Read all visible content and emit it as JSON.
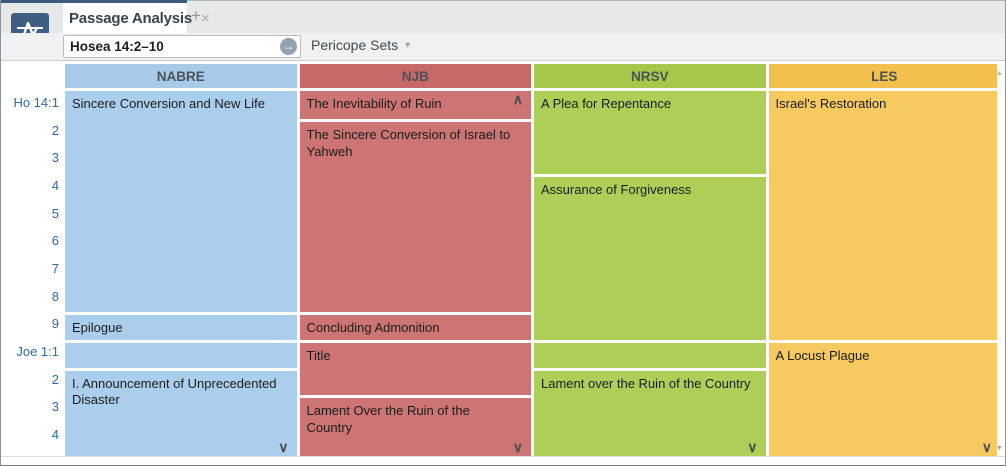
{
  "app": {
    "tab_label": "Passage Analysis",
    "close_glyph": "×",
    "new_tab_glyph": "+",
    "panel_menu_glyph": "▾"
  },
  "toolbar": {
    "reference_value": "Hosea 14:2–10",
    "go_glyph": "→",
    "pericope_sets_label": "Pericope Sets",
    "dropdown_glyph": "▾"
  },
  "grid": {
    "verse_labels": [
      "Ho 14:1",
      "2",
      "3",
      "4",
      "5",
      "6",
      "7",
      "8",
      "9",
      "Joe 1:1",
      "2",
      "3",
      "4"
    ],
    "overflow_up_glyph": "∧",
    "overflow_down_glyph": "∨",
    "columns": [
      {
        "name": "NABRE",
        "header_bg": "#a7cae9",
        "cell_bg": "#abceec",
        "cells": [
          {
            "label": "Sincere Conversion and New Life",
            "row_start": 1,
            "row_end": 8
          },
          {
            "label": "Epilogue",
            "row_start": 9,
            "row_end": 9
          },
          {
            "label": "",
            "row_start": 10,
            "row_end": 10
          },
          {
            "label": "I. Announcement of Unprecedented Disaster",
            "row_start": 11,
            "row_end": 13,
            "continues_below": true
          }
        ]
      },
      {
        "name": "NJB",
        "header_bg": "#c76969",
        "cell_bg": "#cd7474",
        "cells": [
          {
            "label": "The Inevitability of Ruin",
            "row_start": 1,
            "row_end": 1,
            "continues_above": true
          },
          {
            "label": "The Sincere Conversion of Israel to Yahweh",
            "row_start": 2,
            "row_end": 8
          },
          {
            "label": "Concluding Admonition",
            "row_start": 9,
            "row_end": 9
          },
          {
            "label": "Title",
            "row_start": 10,
            "row_end": 11
          },
          {
            "label": "Lament Over the Ruin of the Country",
            "row_start": 12,
            "row_end": 13,
            "continues_below": true
          }
        ]
      },
      {
        "name": "NRSV",
        "header_bg": "#a5c84a",
        "cell_bg": "#adcf58",
        "cells": [
          {
            "label": "A Plea for Repentance",
            "row_start": 1,
            "row_end": 3
          },
          {
            "label": "Assurance of Forgiveness",
            "row_start": 4,
            "row_end": 9
          },
          {
            "label": "",
            "row_start": 10,
            "row_end": 10
          },
          {
            "label": "Lament over the Ruin of the Country",
            "row_start": 11,
            "row_end": 13,
            "continues_below": true
          }
        ]
      },
      {
        "name": "LES",
        "header_bg": "#f3c04d",
        "cell_bg": "#f6c961",
        "cells": [
          {
            "label": "Israel's Restoration",
            "row_start": 1,
            "row_end": 9
          },
          {
            "label": "A Locust Plague",
            "row_start": 10,
            "row_end": 13,
            "continues_below": true
          }
        ]
      }
    ]
  },
  "scrollbar": {
    "up_glyph": "▲",
    "down_glyph": "▼"
  }
}
